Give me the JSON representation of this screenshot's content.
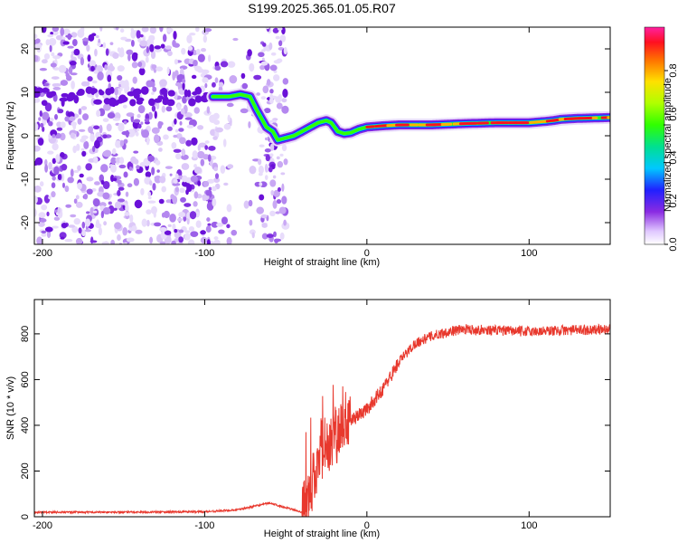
{
  "figure": {
    "title": "S199.2025.365.01.05.R07"
  },
  "chart_data": [
    {
      "type": "heatmap",
      "xlabel": "Height of straight line (km)",
      "ylabel": "Frequency (Hz)",
      "xlim": [
        -205,
        150
      ],
      "ylim": [
        -25,
        25
      ],
      "xticks": [
        -200,
        -100,
        0,
        100
      ],
      "yticks": [
        -20,
        -10,
        0,
        10,
        20
      ],
      "ridge": {
        "x": [
          -95,
          -85,
          -78,
          -72,
          -68,
          -62,
          -58,
          -55,
          -50,
          -45,
          -40,
          -35,
          -30,
          -25,
          -22,
          -18,
          -14,
          -10,
          -5,
          0,
          10,
          20,
          40,
          60,
          80,
          100,
          110,
          115,
          120,
          130,
          150
        ],
        "freq": [
          9,
          9,
          9.5,
          9,
          6,
          2,
          1,
          -1,
          -0.5,
          0,
          1,
          2,
          3,
          3.5,
          3,
          1,
          0.5,
          0.7,
          1.5,
          2,
          2.3,
          2.5,
          2.5,
          2.8,
          3,
          3,
          3.3,
          3.5,
          3.8,
          4,
          4.2
        ]
      },
      "colorbar": {
        "label": "Normalized spectral amplitude",
        "range": [
          0,
          1
        ],
        "ticks": [
          0.0,
          0.2,
          0.4,
          0.6,
          0.8
        ]
      }
    },
    {
      "type": "line",
      "xlabel": "Height of straight line (km)",
      "ylabel": "SNR (10 * v/v)",
      "xlim": [
        -205,
        150
      ],
      "ylim": [
        0,
        950
      ],
      "xticks": [
        -200,
        -100,
        0,
        100
      ],
      "yticks": [
        0,
        200,
        400,
        600,
        800
      ],
      "series": [
        {
          "name": "SNR",
          "color": "#e8382d",
          "envelope_x": [
            -205,
            -150,
            -100,
            -80,
            -70,
            -60,
            -50,
            -40,
            -35,
            -30,
            -25,
            -20,
            -15,
            -10,
            0,
            10,
            20,
            30,
            40,
            50,
            60,
            80,
            100,
            120,
            150
          ],
          "envelope_y": [
            20,
            20,
            22,
            30,
            45,
            60,
            40,
            20,
            100,
            250,
            320,
            350,
            380,
            420,
            470,
            560,
            680,
            760,
            790,
            810,
            820,
            815,
            810,
            815,
            820
          ]
        }
      ]
    }
  ]
}
